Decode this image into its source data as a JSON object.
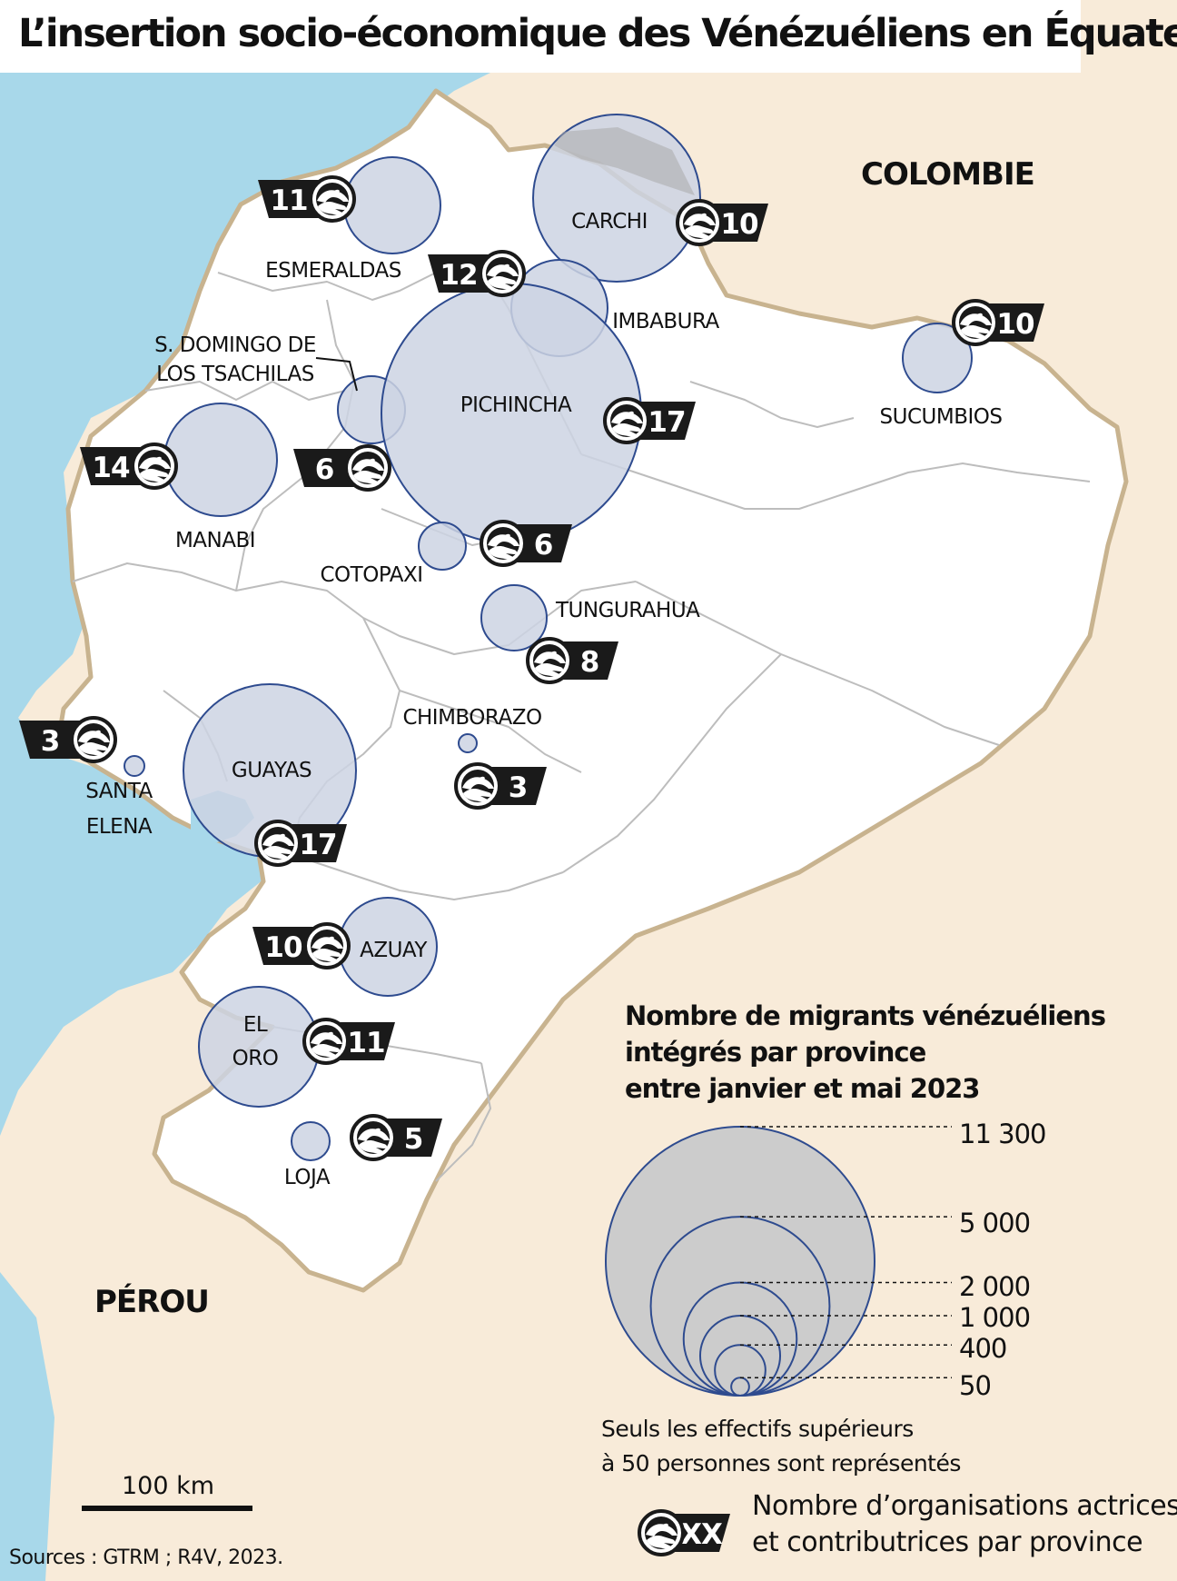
{
  "title": "L’insertion socio-économique des Vénézuéliens en Équateur",
  "countries": {
    "colombia": "COLOMBIE",
    "peru": "PÉROU"
  },
  "colors": {
    "ocean": "#a8d8ea",
    "neighbours": "#f8ebd9",
    "ecuador": "#ffffff",
    "border": "#c8b38f",
    "province_border": "#bdbdbd",
    "circle_fill": "#cdd3e3",
    "circle_stroke": "#2e4b8f",
    "legend_fill": "#cccccc",
    "badge": "#1a1a1a"
  },
  "provinces": [
    {
      "key": "esmeraldas",
      "name": "ESMERALDAS",
      "organisations": "11"
    },
    {
      "key": "carchi",
      "name": "CARCHI",
      "organisations": "10"
    },
    {
      "key": "imbabura",
      "name": "IMBABURA",
      "organisations": "12"
    },
    {
      "key": "sucumbios",
      "name": "SUCUMBIOS",
      "organisations": "10"
    },
    {
      "key": "santo-domingo",
      "name": "S. DOMINGO DE LOS TSACHILAS",
      "name_lines": [
        "S. DOMINGO DE",
        "LOS TSACHILAS"
      ],
      "organisations": "6"
    },
    {
      "key": "pichincha",
      "name": "PICHINCHA",
      "organisations": "17"
    },
    {
      "key": "manabi",
      "name": "MANABI",
      "organisations": "14"
    },
    {
      "key": "cotopaxi",
      "name": "COTOPAXI",
      "organisations": "6"
    },
    {
      "key": "tungurahua",
      "name": "TUNGURAHUA",
      "organisations": "8"
    },
    {
      "key": "chimborazo",
      "name": "CHIMBORAZO",
      "organisations": "3"
    },
    {
      "key": "santa-elena",
      "name": "SANTA ELENA",
      "name_lines": [
        "SANTA",
        "ELENA"
      ],
      "organisations": "3"
    },
    {
      "key": "guayas",
      "name": "GUAYAS",
      "organisations": "17"
    },
    {
      "key": "azuay",
      "name": "AZUAY",
      "organisations": "10"
    },
    {
      "key": "el-oro",
      "name": "EL ORO",
      "name_lines": [
        "EL",
        "ORO"
      ],
      "organisations": "11"
    },
    {
      "key": "loja",
      "name": "LOJA",
      "organisations": "5"
    }
  ],
  "legend": {
    "title_lines": [
      "Nombre de migrants vénézuéliens",
      "intégrés par province",
      "entre janvier et mai 2023"
    ],
    "sizes": [
      {
        "label": "11 300",
        "value": 11300
      },
      {
        "label": "5 000",
        "value": 5000
      },
      {
        "label": "2 000",
        "value": 2000
      },
      {
        "label": "1 000",
        "value": 1000
      },
      {
        "label": "400",
        "value": 400
      },
      {
        "label": "50",
        "value": 50
      }
    ],
    "note_lines": [
      "Seuls les effectifs supérieurs",
      "à 50 personnes sont représentés"
    ],
    "org_badge_text": "XX",
    "org_lines": [
      "Nombre d’organisations actrices",
      "et contributrices par province"
    ]
  },
  "scale": "100 km",
  "source": "Sources : GTRM ; R4V, 2023."
}
